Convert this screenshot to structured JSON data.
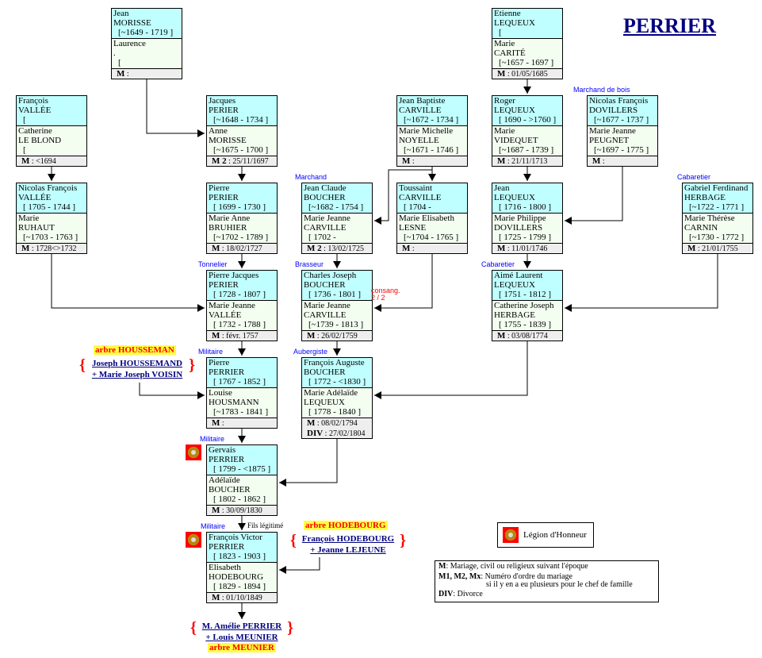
{
  "title": "PERRIER",
  "boxes": [
    {
      "h": [
        "Jean",
        "MORISSE",
        "[~1649 - 1719 ]"
      ],
      "w": [
        "Laurence",
        ".",
        "["
      ],
      "m": "M",
      "mv": ":"
    },
    {
      "h": [
        "Etienne",
        "LEQUEUX",
        "["
      ],
      "w": [
        "Marie",
        "CARITÉ",
        "[~1657 - 1697 ]"
      ],
      "m": "M",
      "mv": ": 01/05/1685"
    },
    {
      "h": [
        "François",
        "VALLÉE",
        "["
      ],
      "w": [
        "Catherine",
        "LE BLOND",
        "["
      ],
      "m": "M",
      "mv": ":  <1694"
    },
    {
      "h": [
        "Jacques",
        "PERIER",
        "[~1648 - 1734 ]"
      ],
      "w": [
        "Anne",
        "MORISSE",
        "[~1675 - 1700 ]"
      ],
      "m": "M 2",
      "mv": ": 25/11/1697"
    },
    {
      "h": [
        "Jean Baptiste",
        "CARVILLE",
        "[~1672 - 1734 ]"
      ],
      "w": [
        "Marie Michelle",
        "NOYELLE",
        "[~1671 - 1746 ]"
      ],
      "m": "M",
      "mv": ":"
    },
    {
      "h": [
        "Roger",
        "LEQUEUX",
        "[ 1690 - >1760 ]"
      ],
      "w": [
        "Marie",
        "VIDEQUET",
        "[~1687 - 1739 ]"
      ],
      "m": "M",
      "mv": ": 21/11/1713"
    },
    {
      "h": [
        "Nicolas François",
        "DOVILLERS",
        "[~1677 - 1737 ]"
      ],
      "w": [
        "Marie Jeanne",
        "PEUGNET",
        "[~1697 - 1775 ]"
      ],
      "m": "M",
      "mv": ":"
    },
    {
      "h": [
        "Nicolas François",
        "VALLÉE",
        "[ 1705 - 1744 ]"
      ],
      "w": [
        "Marie",
        "RUHAUT",
        "[~1703 - 1763 ]"
      ],
      "m": "M",
      "mv": ": 1728<>1732"
    },
    {
      "h": [
        "Pierre",
        "PERIER",
        "[ 1699 - 1730 ]"
      ],
      "w": [
        "Marie Anne",
        "BRUHIER",
        "[~1702 - 1789 ]"
      ],
      "m": "M",
      "mv": ": 18/02/1727"
    },
    {
      "h": [
        "Jean Claude",
        "BOUCHER",
        "[~1682 - 1754 ]"
      ],
      "w": [
        "Marie Jeanne",
        "CARVILLE",
        "[ 1702 -"
      ],
      "m": "M 2",
      "mv": ": 13/02/1725"
    },
    {
      "h": [
        "Toussaint",
        "CARVILLE",
        "[ 1704 -"
      ],
      "w": [
        "Marie Elisabeth",
        "LESNE",
        "[~1704 - 1765 ]"
      ],
      "m": "M",
      "mv": ":"
    },
    {
      "h": [
        "Jean",
        "LEQUEUX",
        "[ 1716 - 1800 ]"
      ],
      "w": [
        "Marie Philippe",
        "DOVILLERS",
        "[ 1725 - 1799 ]"
      ],
      "m": "M",
      "mv": ": 11/01/1746"
    },
    {
      "h": [
        "Gabriel Ferdinand",
        "HERBAGE",
        "[~1722 - 1771 ]"
      ],
      "w": [
        "Marie Thérèse",
        "CARNIN",
        "[~1730 - 1772 ]"
      ],
      "m": "M",
      "mv": ": 21/01/1755"
    },
    {
      "h": [
        "Pierre Jacques",
        "PERIER",
        "[ 1728 - 1807 ]"
      ],
      "w": [
        "Marie Jeanne",
        "VALLÉE",
        "[ 1732 - 1788 ]"
      ],
      "m": "M",
      "mv": ":  févr. 1757"
    },
    {
      "h": [
        "Charles Joseph",
        "BOUCHER",
        "[ 1736 - 1801 ]"
      ],
      "w": [
        "Marie Jeanne",
        "CARVILLE",
        "[~1739 - 1813 ]"
      ],
      "m": "M",
      "mv": ":  26/02/1759"
    },
    {
      "h": [
        "Aimé Laurent",
        "LEQUEUX",
        "[ 1751 - 1812 ]"
      ],
      "w": [
        "Catherine Joseph",
        "HERBAGE",
        "[ 1755 - 1839 ]"
      ],
      "m": "M",
      "mv": ": 03/08/1774"
    },
    {
      "h": [
        "Pierre",
        "PERRIER",
        "[ 1767 - 1852 ]"
      ],
      "w": [
        "Louise",
        "HOUSMANN",
        "[~1783 - 1841 ]"
      ],
      "m": "M",
      "mv": ":"
    },
    {
      "h": [
        "François Auguste",
        "BOUCHER",
        "[ 1772 - <1830 ]"
      ],
      "w": [
        "Marie Adélaïde",
        "LEQUEUX",
        "[ 1778 - 1840 ]"
      ],
      "m": "M",
      "mv": ":  08/02/1794",
      "m2": "DIV",
      "mv2": ":  27/02/1804"
    },
    {
      "h": [
        "Gervais",
        "PERRIER",
        "[ 1799 - <1875 ]"
      ],
      "w": [
        "Adélaïde",
        "BOUCHER",
        "[ 1802 - 1862 ]"
      ],
      "m": "M",
      "mv": ":  30/09/1830"
    },
    {
      "h": [
        "François Victor",
        "PERRIER",
        "[ 1823 - 1903 ]"
      ],
      "w": [
        "Elisabeth",
        "HODEBOURG",
        "[ 1829 - 1894 ]"
      ],
      "m": "M",
      "mv": ": 01/10/1849"
    }
  ],
  "jobs": [
    "Marchand de bois",
    "Marchand",
    "Cabaretier",
    "Tonnelier",
    "Brasseur",
    "Cabaretier",
    "Militaire",
    "Aubergiste",
    "Militaire",
    "Militaire"
  ],
  "consang": [
    "consang.",
    "2 / 2"
  ],
  "fils_legitime": "Fils légitimé",
  "housseman": {
    "arbre": "arbre HOUSSEMAN",
    "l1": "Joseph HOUSSEMAND",
    "l2": "+ Marie Joseph VOISIN"
  },
  "hodebourg": {
    "arbre": "arbre HODEBOURG",
    "l1": "François HODEBOURG",
    "l2": "+ Jeanne LEJEUNE"
  },
  "meunier": {
    "arbre": "arbre MEUNIER",
    "l1": "M. Amélie PERRIER",
    "l2": "+ Louis MEUNIER"
  },
  "legend_loh": "Légion d'Honneur",
  "legend": [
    {
      "k": "M",
      "v": ": Mariage, civil ou religieux  suivant l'époque"
    },
    {
      "k": "M1, M2, Mx",
      "v": ": Numéro d'ordre du mariage"
    },
    {
      "k": "",
      "v": "si il y en a eu plusieurs pour le chef de famille"
    },
    {
      "k": "DIV",
      "v": ": Divorce"
    }
  ]
}
